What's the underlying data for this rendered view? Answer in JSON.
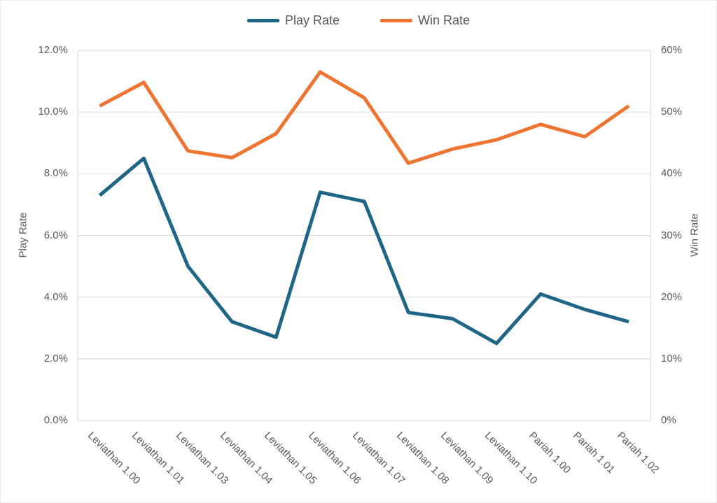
{
  "chart_data": {
    "type": "line",
    "title": "",
    "categories": [
      "Leviathan 1.00",
      "Leviathan 1.01",
      "Leviathan 1.03",
      "Leviathan 1.04",
      "Leviathan 1.05",
      "Leviathan 1.06",
      "Leviathan 1.07",
      "Leviathan 1.08",
      "Leviathan 1.09",
      "Leviathan 1.10",
      "Pariah 1.00",
      "Pariah 1.01",
      "Pariah 1.02"
    ],
    "series": [
      {
        "name": "Play Rate",
        "axis": "left",
        "color": "#1E6586",
        "values": [
          7.3,
          8.5,
          5.0,
          3.2,
          2.7,
          7.4,
          7.1,
          3.5,
          3.3,
          2.5,
          4.1,
          3.6,
          3.2
        ]
      },
      {
        "name": "Win Rate",
        "axis": "right",
        "color": "#ED7431",
        "values": [
          51.0,
          54.8,
          43.7,
          42.6,
          46.5,
          56.5,
          52.3,
          41.7,
          44.0,
          45.5,
          48.0,
          46.0,
          51.0
        ]
      }
    ],
    "left_axis": {
      "label": "Play Rate",
      "min": 0,
      "max": 12,
      "step": 2,
      "ticks": [
        "0.0%",
        "2.0%",
        "4.0%",
        "6.0%",
        "8.0%",
        "10.0%",
        "12.0%"
      ]
    },
    "right_axis": {
      "label": "Win Rate",
      "min": 0,
      "max": 60,
      "step": 10,
      "ticks": [
        "0%",
        "10%",
        "20%",
        "30%",
        "40%",
        "50%",
        "60%"
      ]
    },
    "legend_position": "top",
    "grid": "horizontal",
    "colors": {
      "grid": "#D9D9D9",
      "border": "#D4D4D4",
      "text": "#595959"
    }
  }
}
